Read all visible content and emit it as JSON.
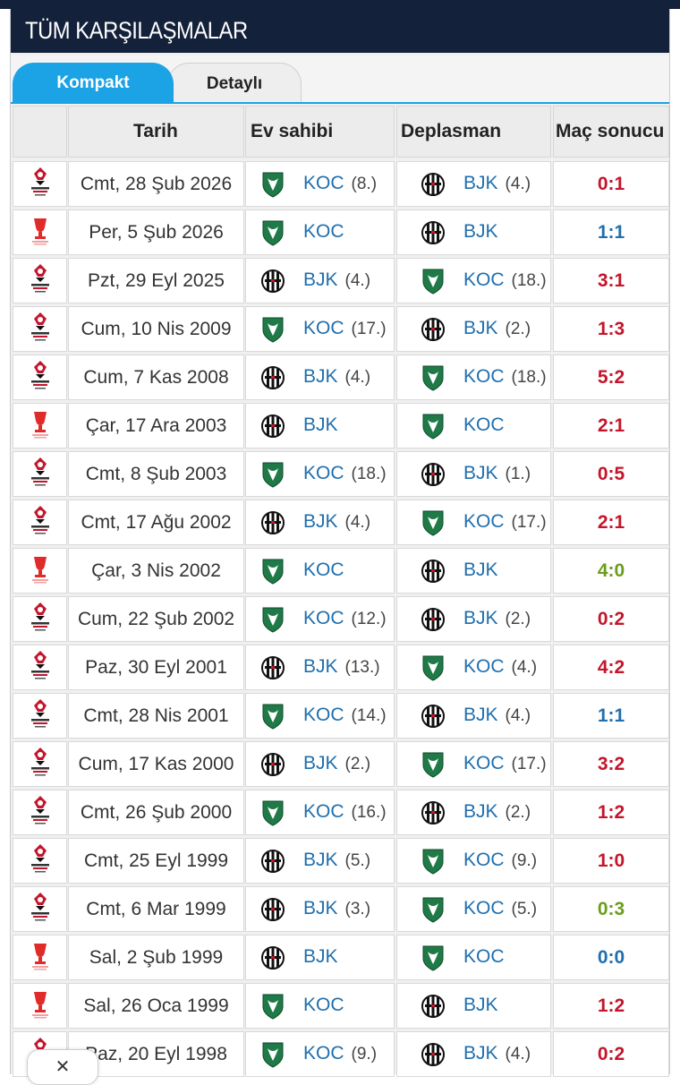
{
  "title": "TÜM KARŞILAŞMALAR",
  "tabs": {
    "compact": "Kompakt",
    "detailed": "Detaylı"
  },
  "headers": {
    "date": "Tarih",
    "home": "Ev sahibi",
    "away": "Deplasman",
    "result": "Maç sonucu"
  },
  "colors": {
    "win": "#c4152b",
    "draw": "#1f6fae",
    "loss": "#6a9e1c",
    "link": "#1f6fae",
    "accent": "#1ba3e6",
    "navy": "#14213a"
  },
  "matches": [
    {
      "competition": "super-lig-logo",
      "date": "Cmt, 28 Şub 2026",
      "home": "KOC",
      "home_rank": "(8.)",
      "away": "BJK",
      "away_rank": "(4.)",
      "score": "0:1",
      "outcome": "win"
    },
    {
      "competition": "turkish-cup-logo",
      "date": "Per, 5 Şub 2026",
      "home": "KOC",
      "home_rank": "",
      "away": "BJK",
      "away_rank": "",
      "score": "1:1",
      "outcome": "draw"
    },
    {
      "competition": "super-lig-logo",
      "date": "Pzt, 29 Eyl 2025",
      "home": "BJK",
      "home_rank": "(4.)",
      "away": "KOC",
      "away_rank": "(18.)",
      "score": "3:1",
      "outcome": "win"
    },
    {
      "competition": "super-lig-logo",
      "date": "Cum, 10 Nis 2009",
      "home": "KOC",
      "home_rank": "(17.)",
      "away": "BJK",
      "away_rank": "(2.)",
      "score": "1:3",
      "outcome": "win"
    },
    {
      "competition": "super-lig-logo",
      "date": "Cum, 7 Kas 2008",
      "home": "BJK",
      "home_rank": "(4.)",
      "away": "KOC",
      "away_rank": "(18.)",
      "score": "5:2",
      "outcome": "win"
    },
    {
      "competition": "turkish-cup-logo",
      "date": "Çar, 17 Ara 2003",
      "home": "BJK",
      "home_rank": "",
      "away": "KOC",
      "away_rank": "",
      "score": "2:1",
      "outcome": "win"
    },
    {
      "competition": "super-lig-logo",
      "date": "Cmt, 8 Şub 2003",
      "home": "KOC",
      "home_rank": "(18.)",
      "away": "BJK",
      "away_rank": "(1.)",
      "score": "0:5",
      "outcome": "win"
    },
    {
      "competition": "super-lig-logo",
      "date": "Cmt, 17 Ağu 2002",
      "home": "BJK",
      "home_rank": "(4.)",
      "away": "KOC",
      "away_rank": "(17.)",
      "score": "2:1",
      "outcome": "win"
    },
    {
      "competition": "turkish-cup-logo",
      "date": "Çar, 3 Nis 2002",
      "home": "KOC",
      "home_rank": "",
      "away": "BJK",
      "away_rank": "",
      "score": "4:0",
      "outcome": "loss"
    },
    {
      "competition": "super-lig-logo",
      "date": "Cum, 22 Şub 2002",
      "home": "KOC",
      "home_rank": "(12.)",
      "away": "BJK",
      "away_rank": "(2.)",
      "score": "0:2",
      "outcome": "win"
    },
    {
      "competition": "super-lig-logo",
      "date": "Paz, 30 Eyl 2001",
      "home": "BJK",
      "home_rank": "(13.)",
      "away": "KOC",
      "away_rank": "(4.)",
      "score": "4:2",
      "outcome": "win"
    },
    {
      "competition": "super-lig-logo",
      "date": "Cmt, 28 Nis 2001",
      "home": "KOC",
      "home_rank": "(14.)",
      "away": "BJK",
      "away_rank": "(4.)",
      "score": "1:1",
      "outcome": "draw"
    },
    {
      "competition": "super-lig-logo",
      "date": "Cum, 17 Kas 2000",
      "home": "BJK",
      "home_rank": "(2.)",
      "away": "KOC",
      "away_rank": "(17.)",
      "score": "3:2",
      "outcome": "win"
    },
    {
      "competition": "super-lig-logo",
      "date": "Cmt, 26 Şub 2000",
      "home": "KOC",
      "home_rank": "(16.)",
      "away": "BJK",
      "away_rank": "(2.)",
      "score": "1:2",
      "outcome": "win"
    },
    {
      "competition": "super-lig-logo",
      "date": "Cmt, 25 Eyl 1999",
      "home": "BJK",
      "home_rank": "(5.)",
      "away": "KOC",
      "away_rank": "(9.)",
      "score": "1:0",
      "outcome": "win"
    },
    {
      "competition": "super-lig-logo",
      "date": "Cmt, 6 Mar 1999",
      "home": "BJK",
      "home_rank": "(3.)",
      "away": "KOC",
      "away_rank": "(5.)",
      "score": "0:3",
      "outcome": "loss"
    },
    {
      "competition": "turkish-cup-logo",
      "date": "Sal, 2 Şub 1999",
      "home": "BJK",
      "home_rank": "",
      "away": "KOC",
      "away_rank": "",
      "score": "0:0",
      "outcome": "draw"
    },
    {
      "competition": "turkish-cup-logo",
      "date": "Sal, 26 Oca 1999",
      "home": "KOC",
      "home_rank": "",
      "away": "BJK",
      "away_rank": "",
      "score": "1:2",
      "outcome": "win"
    },
    {
      "competition": "super-lig-logo",
      "date": "Paz, 20 Eyl 1998",
      "home": "KOC",
      "home_rank": "(9.)",
      "away": "BJK",
      "away_rank": "(4.)",
      "score": "0:2",
      "outcome": "win"
    }
  ],
  "overlay": {
    "icon": "close-icon"
  }
}
